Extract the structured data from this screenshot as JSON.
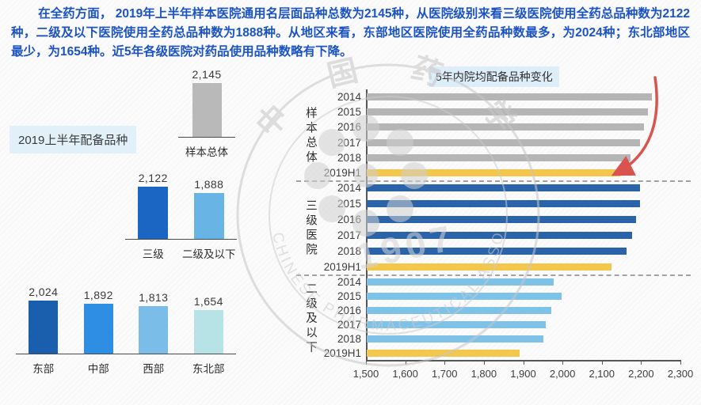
{
  "header": {
    "paragraph": "在全药方面， 2019年上半年样本医院通用名层面品种总数为2145种，从医院级别来看三级医院使用全药总品种数为2122种，二级及以下医院使用全药总品种数为1888种。从地区来看，东部地区医院使用全药品种数最多，为2024种；东北部地区最少，为1654种。近5年各级医院对药品使用品种数略有下降。"
  },
  "left_caption": "2019上半年配备品种",
  "watermark": {
    "cn": "中 国 药 学 会",
    "en": "CHINESE PHARMACEUTICAL ASSOCIATION",
    "year": "1907"
  },
  "colors": {
    "header_text": "#1b53c4",
    "caption_bg": "#e2f0fa",
    "arrow_red": "#d9534f",
    "axis": "#555555",
    "dashed_separator": "#a2a2a2"
  },
  "chart_data": [
    {
      "id": "sample_total",
      "type": "bar",
      "categories": [
        "样本总体"
      ],
      "values": [
        2145
      ],
      "labels": [
        "2,145"
      ],
      "colors": [
        "#b9b9b9"
      ],
      "ylim": [
        0,
        2200
      ]
    },
    {
      "id": "hospital_tier",
      "type": "bar",
      "categories": [
        "三级",
        "二级及以下"
      ],
      "values": [
        2122,
        1888
      ],
      "labels": [
        "2,122",
        "1,888"
      ],
      "colors": [
        "#1a66c2",
        "#68b5e5"
      ],
      "ylim": [
        0,
        2200
      ]
    },
    {
      "id": "region",
      "type": "bar",
      "categories": [
        "东部",
        "中部",
        "西部",
        "东北部"
      ],
      "values": [
        2024,
        1892,
        1813,
        1654
      ],
      "labels": [
        "2,024",
        "1,892",
        "1,813",
        "1,654"
      ],
      "colors": [
        "#1a5fae",
        "#2e8ee4",
        "#7abde8",
        "#b7e3e7"
      ],
      "ylim": [
        0,
        2100
      ]
    },
    {
      "id": "trend_5yr",
      "type": "bar-horizontal",
      "title": "5年内院均配备品种变化",
      "categories": [
        "2014",
        "2015",
        "2016",
        "2017",
        "2018",
        "2019H1"
      ],
      "series": [
        {
          "name": "样本总体",
          "color": "#b5b5b5",
          "values": [
            2225,
            2215,
            2205,
            2195,
            2170,
            2145
          ]
        },
        {
          "name": "三级医院",
          "color": "#2b63a8",
          "values": [
            2195,
            2195,
            2185,
            2175,
            2160,
            2122
          ]
        },
        {
          "name": "二级及以下",
          "color": "#7fc2e8",
          "values": [
            1975,
            1995,
            1970,
            1955,
            1950,
            1888
          ]
        }
      ],
      "highlight_category": "2019H1",
      "highlight_color": "#f3c74b",
      "xlim": [
        1500,
        2300
      ],
      "xticks": [
        "1,500",
        "1,600",
        "1,700",
        "1,800",
        "1,900",
        "2,000",
        "2,100",
        "2,200",
        "2,300"
      ],
      "annotation": "decline-arrow"
    }
  ]
}
